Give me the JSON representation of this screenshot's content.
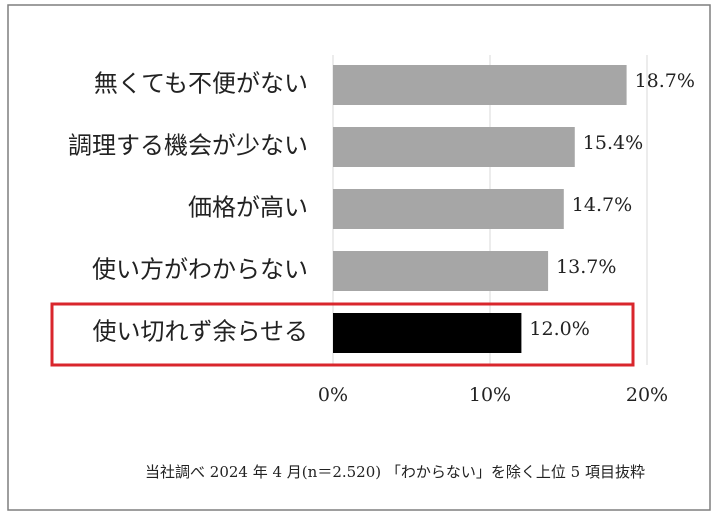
{
  "chart_data": {
    "type": "bar",
    "orientation": "horizontal",
    "categories": [
      "無くても不便がない",
      "調理する機会が少ない",
      "価格が高い",
      "使い方がわからない",
      "使い切れず余らせる"
    ],
    "values": [
      18.7,
      15.4,
      14.7,
      13.7,
      12.0
    ],
    "value_labels": [
      "18.7%",
      "15.4%",
      "14.7%",
      "13.7%",
      "12.0%"
    ],
    "colors": [
      "#a6a6a6",
      "#a6a6a6",
      "#a6a6a6",
      "#a6a6a6",
      "#000000"
    ],
    "xlim": [
      0,
      20
    ],
    "xticks": [
      {
        "value": 0,
        "label": "0%"
      },
      {
        "value": 10,
        "label": "10%"
      },
      {
        "value": 20,
        "label": "20%"
      }
    ],
    "grid": true,
    "note": "当社調べ 2024 年 4 月(n＝2.520) 「わからない」を除く上位 5 項目抜粋"
  }
}
